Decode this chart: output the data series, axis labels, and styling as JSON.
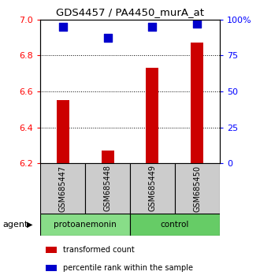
{
  "title": "GDS4457 / PA4450_murA_at",
  "samples": [
    "GSM685447",
    "GSM685448",
    "GSM685449",
    "GSM685450"
  ],
  "bar_values": [
    6.55,
    6.27,
    6.73,
    6.87
  ],
  "percentile_values": [
    95,
    87,
    95,
    97
  ],
  "ylim_left": [
    6.2,
    7.0
  ],
  "ylim_right": [
    0,
    100
  ],
  "left_yticks": [
    6.2,
    6.4,
    6.6,
    6.8,
    7.0
  ],
  "right_yticks": [
    0,
    25,
    50,
    75,
    100
  ],
  "right_yticklabels": [
    "0",
    "25",
    "50",
    "75",
    "100%"
  ],
  "bar_color": "#cc0000",
  "dot_color": "#0000cc",
  "groups": [
    {
      "label": "protoanemonin",
      "indices": [
        0,
        1
      ],
      "color": "#88dd88"
    },
    {
      "label": "control",
      "indices": [
        2,
        3
      ],
      "color": "#66cc66"
    }
  ],
  "sample_box_color": "#cccccc",
  "agent_label": "agent",
  "legend_items": [
    {
      "color": "#cc0000",
      "label": "transformed count"
    },
    {
      "color": "#0000cc",
      "label": "percentile rank within the sample"
    }
  ],
  "grid_linestyle": ":",
  "grid_color": "#000000",
  "bar_baseline": 6.2,
  "dot_size": 45,
  "bar_width": 0.28
}
